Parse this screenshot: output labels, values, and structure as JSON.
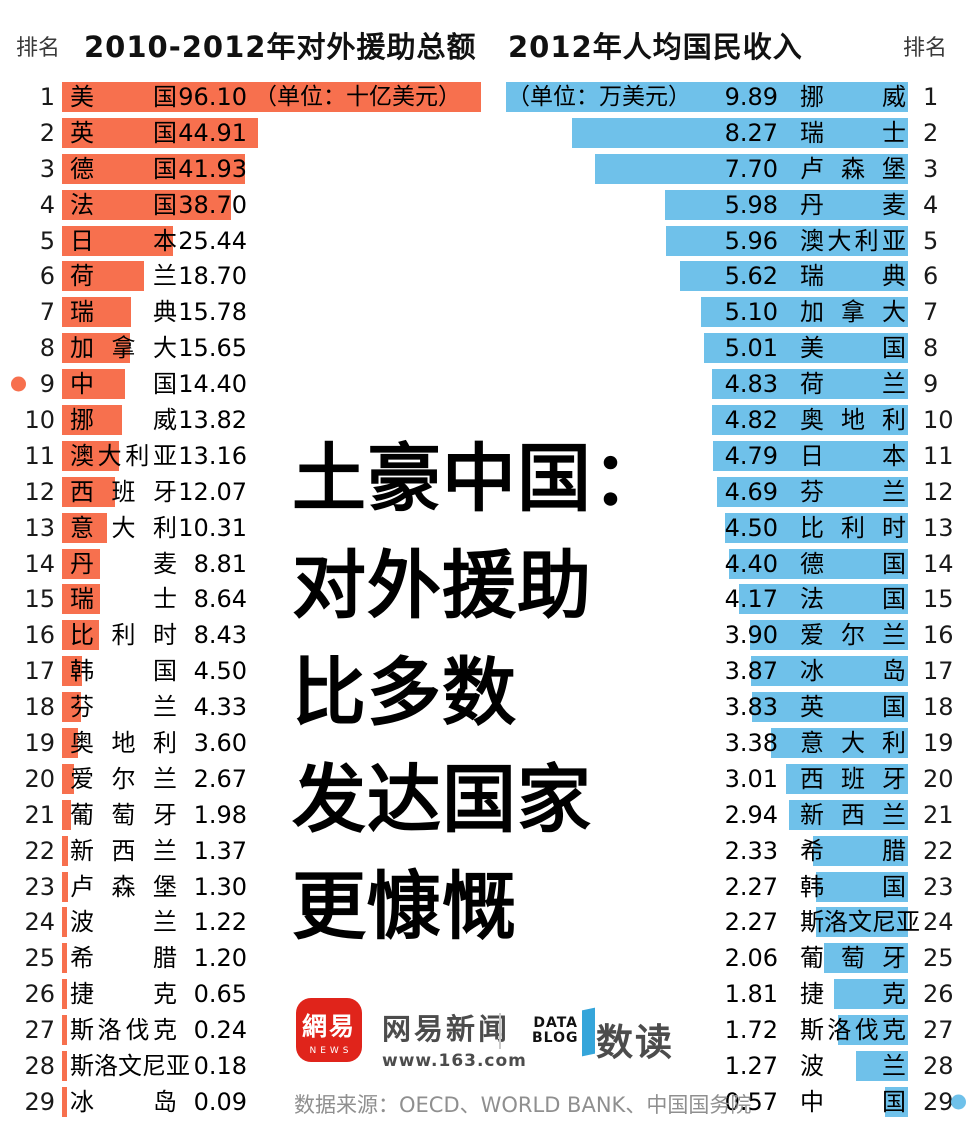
{
  "colors": {
    "aid_bar": "#F7704E",
    "income_bar": "#6FC1EA",
    "netease_red": "#E0241B",
    "datablog_blue": "#35A5DA",
    "source_gray": "#8F8F8F"
  },
  "header": {
    "left_rank_label": "排名",
    "right_rank_label": "排名"
  },
  "headline": {
    "lines": [
      "土豪中国：",
      "对外援助",
      "比多数",
      "发达国家",
      "更慷慨"
    ]
  },
  "footer": {
    "logo_cn": "網易",
    "logo_en": "NEWS",
    "brand_name": "网易新闻",
    "brand_url": "www.163.com",
    "badge_line1": "DATA",
    "badge_line2": "BLOG",
    "badge_name": "数读",
    "source": "数据来源：OECD、WORLD BANK、中国国务院"
  },
  "chart_data": [
    {
      "type": "bar",
      "orientation": "horizontal-left",
      "title": "2010-2012年对外援助总额",
      "unit": "（单位：十亿美元）",
      "rank_label": "排名",
      "bar_color": "#F7704E",
      "xlim": [
        0,
        96.1
      ],
      "highlight_rank": 9,
      "highlight_country": "中国",
      "categories": [
        "美国",
        "英国",
        "德国",
        "法国",
        "日本",
        "荷兰",
        "瑞典",
        "加拿大",
        "中国",
        "挪威",
        "澳大利亚",
        "西班牙",
        "意大利",
        "丹麦",
        "瑞士",
        "比利时",
        "韩国",
        "芬兰",
        "奥地利",
        "爱尔兰",
        "葡萄牙",
        "新西兰",
        "卢森堡",
        "波兰",
        "希腊",
        "捷克",
        "斯洛伐克",
        "斯洛文尼亚",
        "冰岛"
      ],
      "values": [
        96.1,
        44.91,
        41.93,
        38.7,
        25.44,
        18.7,
        15.78,
        15.65,
        14.4,
        13.82,
        13.16,
        12.07,
        10.31,
        8.81,
        8.64,
        8.43,
        4.5,
        4.33,
        3.6,
        2.67,
        1.98,
        1.37,
        1.3,
        1.22,
        1.2,
        0.65,
        0.24,
        0.18,
        0.09
      ],
      "value_labels": [
        "96.10",
        "44.91",
        "41.93",
        "38.70",
        "25.44",
        "18.70",
        "15.78",
        "15.65",
        "14.40",
        "13.82",
        "13.16",
        "12.07",
        "10.31",
        "8.81",
        "8.64",
        "8.43",
        "4.50",
        "4.33",
        "3.60",
        "2.67",
        "1.98",
        "1.37",
        "1.30",
        "1.22",
        "1.20",
        "0.65",
        "0.24",
        "0.18",
        "0.09"
      ]
    },
    {
      "type": "bar",
      "orientation": "horizontal-right",
      "title": "2012年人均国民收入",
      "unit": "（单位：万美元）",
      "rank_label": "排名",
      "bar_color": "#6FC1EA",
      "xlim": [
        0,
        9.89
      ],
      "highlight_rank": 29,
      "highlight_country": "中国",
      "categories": [
        "挪威",
        "瑞士",
        "卢森堡",
        "丹麦",
        "澳大利亚",
        "瑞典",
        "加拿大",
        "美国",
        "荷兰",
        "奥地利",
        "日本",
        "芬兰",
        "比利时",
        "德国",
        "法国",
        "爱尔兰",
        "冰岛",
        "英国",
        "意大利",
        "西班牙",
        "新西兰",
        "希腊",
        "韩国",
        "斯洛文尼亚",
        "葡萄牙",
        "捷克",
        "斯洛伐克",
        "波兰",
        "中国"
      ],
      "values": [
        9.89,
        8.27,
        7.7,
        5.98,
        5.96,
        5.62,
        5.1,
        5.01,
        4.83,
        4.82,
        4.79,
        4.69,
        4.5,
        4.4,
        4.17,
        3.9,
        3.87,
        3.83,
        3.38,
        3.01,
        2.94,
        2.33,
        2.27,
        2.27,
        2.06,
        1.81,
        1.72,
        1.27,
        0.57
      ],
      "value_labels": [
        "9.89",
        "8.27",
        "7.70",
        "5.98",
        "5.96",
        "5.62",
        "5.10",
        "5.01",
        "4.83",
        "4.82",
        "4.79",
        "4.69",
        "4.50",
        "4.40",
        "4.17",
        "3.90",
        "3.87",
        "3.83",
        "3.38",
        "3.01",
        "2.94",
        "2.33",
        "2.27",
        "2.27",
        "2.06",
        "1.81",
        "1.72",
        "1.27",
        "0.57"
      ]
    }
  ]
}
